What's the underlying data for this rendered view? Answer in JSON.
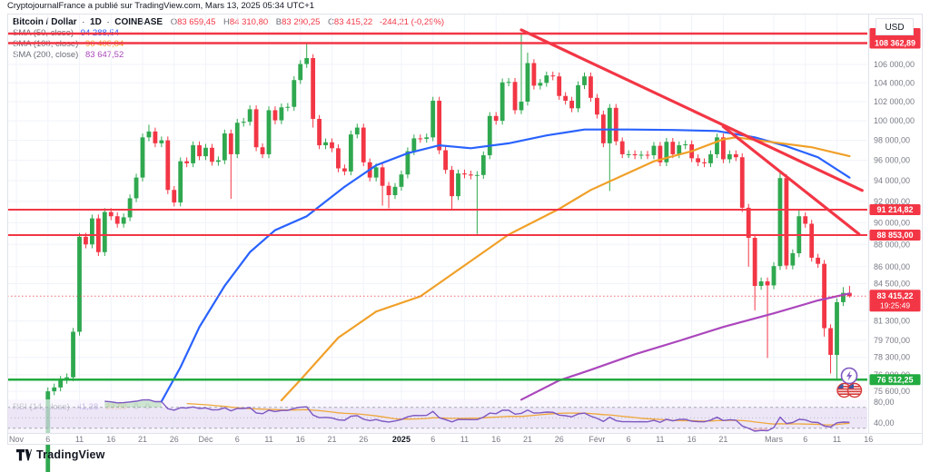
{
  "header": {
    "attribution": "CryptojournalFrance a publié sur TradingView.com, Mars 13, 2025 05:34 UTC+1"
  },
  "legend": {
    "symbol": "Bitcoin / Dollar",
    "sep": "·",
    "interval": "1D",
    "exchange": "COINBASE",
    "ohlc": [
      {
        "label": "O",
        "value": "83 659,45"
      },
      {
        "label": "H",
        "value": "84 310,80"
      },
      {
        "label": "B",
        "value": "83 290,25"
      },
      {
        "label": "C",
        "value": "83 415,22"
      }
    ],
    "change": "-244,21 (-0,29%)"
  },
  "sma_rows": [
    {
      "label": "SMA (50, close)",
      "value": "94 288,54",
      "color": "#2962ff"
    },
    {
      "label": "SMA (100, close)",
      "value": "96 408,84",
      "color": "#f0a029"
    },
    {
      "label": "SMA (200, close)",
      "value": "83 647,52",
      "color": "#ab47bc"
    }
  ],
  "rsi_legend": {
    "label": "RSI (14, close)",
    "value": "41,38",
    "ma_value": "39,60",
    "extra1": "0",
    "extra2": "0"
  },
  "axis": {
    "currency": "USD",
    "price_ticks": [
      {
        "v": 106000,
        "label": "106 000,00"
      },
      {
        "v": 104000,
        "label": "104 000,00"
      },
      {
        "v": 102000,
        "label": "102 000,00"
      },
      {
        "v": 100000,
        "label": "100 000,00"
      },
      {
        "v": 98000,
        "label": "98 000,00"
      },
      {
        "v": 96000,
        "label": "96 000,00"
      },
      {
        "v": 94000,
        "label": "94 000,00"
      },
      {
        "v": 92000,
        "label": "92 000,00"
      },
      {
        "v": 90000,
        "label": "90 000,00"
      },
      {
        "v": 88000,
        "label": "88 000,00"
      },
      {
        "v": 86000,
        "label": "86 000,00"
      },
      {
        "v": 84500,
        "label": "84 500,00"
      },
      {
        "v": 81300,
        "label": "81 300,00"
      },
      {
        "v": 79700,
        "label": "79 700,00"
      },
      {
        "v": 78300,
        "label": "78 300,00"
      },
      {
        "v": 76900,
        "label": "76 900,00"
      },
      {
        "v": 75600,
        "label": "75 600,00"
      }
    ],
    "rsi_ticks": [
      {
        "r": 80,
        "label": "80,00"
      },
      {
        "r": 40,
        "label": "40,00"
      }
    ],
    "time_ticks": [
      {
        "label": "Nov",
        "d": 0,
        "bold": false
      },
      {
        "label": "6",
        "d": 5,
        "bold": false
      },
      {
        "label": "11",
        "d": 10,
        "bold": false
      },
      {
        "label": "16",
        "d": 15,
        "bold": false
      },
      {
        "label": "21",
        "d": 20,
        "bold": false
      },
      {
        "label": "26",
        "d": 25,
        "bold": false
      },
      {
        "label": "Déc",
        "d": 30,
        "bold": false
      },
      {
        "label": "6",
        "d": 35,
        "bold": false
      },
      {
        "label": "11",
        "d": 40,
        "bold": false
      },
      {
        "label": "16",
        "d": 45,
        "bold": false
      },
      {
        "label": "21",
        "d": 50,
        "bold": false
      },
      {
        "label": "26",
        "d": 55,
        "bold": false
      },
      {
        "label": "2025",
        "d": 61,
        "bold": true
      },
      {
        "label": "6",
        "d": 66,
        "bold": false
      },
      {
        "label": "11",
        "d": 71,
        "bold": false
      },
      {
        "label": "16",
        "d": 76,
        "bold": false
      },
      {
        "label": "21",
        "d": 81,
        "bold": false
      },
      {
        "label": "26",
        "d": 86,
        "bold": false
      },
      {
        "label": "Févr",
        "d": 92,
        "bold": false
      },
      {
        "label": "6",
        "d": 97,
        "bold": false
      },
      {
        "label": "11",
        "d": 102,
        "bold": false
      },
      {
        "label": "16",
        "d": 107,
        "bold": false
      },
      {
        "label": "21",
        "d": 112,
        "bold": false
      },
      {
        "label": "Mars",
        "d": 120,
        "bold": false
      },
      {
        "label": "6",
        "d": 125,
        "bold": false
      },
      {
        "label": "11",
        "d": 130,
        "bold": false
      },
      {
        "label": "16",
        "d": 135,
        "bold": false
      }
    ]
  },
  "footer": {
    "logo_text": "TradingView"
  },
  "colors": {
    "up": "#2fa84f",
    "down": "#f23645",
    "sma50": "#2962ff",
    "sma100": "#f0a029",
    "sma200": "#ab47bc",
    "rsi": "#7e57c2",
    "rsi_ma": "#f0a73a",
    "level_red": "#f23645",
    "level_green": "#22ab40",
    "grid": "#f0f3fa",
    "axis_text": "#787b86",
    "border": "#e0e3eb",
    "title_text": "#131722"
  },
  "chart_data": {
    "type": "candlestick",
    "symbol": "Bitcoin / Dollar",
    "exchange": "COINBASE",
    "interval": "1D",
    "scale": "log",
    "start_date": "2024-11-01",
    "end_date": "2025-03-13",
    "first_open": 69600,
    "closes": [
      70200,
      69400,
      68800,
      67900,
      69400,
      75600,
      75900,
      76500,
      76700,
      80400,
      88700,
      88000,
      90400,
      87300,
      91000,
      90600,
      89900,
      90500,
      92300,
      94300,
      98300,
      98900,
      97700,
      98000,
      93100,
      91900,
      95900,
      95700,
      97500,
      96400,
      97250,
      95850,
      96000,
      98700,
      96600,
      99800,
      99900,
      101200,
      97300,
      96600,
      101100,
      100050,
      101400,
      101450,
      104300,
      106050,
      106700,
      100200,
      97500,
      97800,
      97200,
      95200,
      94900,
      98600,
      99300,
      95800,
      94300,
      95300,
      93500,
      92600,
      93400,
      94600,
      96900,
      98200,
      98150,
      98300,
      102100,
      97000,
      95050,
      92500,
      94700,
      94600,
      94500,
      94550,
      96500,
      100500,
      100000,
      104050,
      104100,
      101100,
      102000,
      106150,
      103700,
      104000,
      104800,
      104700,
      102600,
      102100,
      101300,
      103750,
      104700,
      102400,
      100650,
      97700,
      101350,
      97900,
      96600,
      96600,
      96500,
      96550,
      96500,
      97450,
      95800,
      97850,
      96600,
      97500,
      97600,
      96200,
      95800,
      95700,
      96600,
      98300,
      96100,
      96600,
      96300,
      91400,
      88600,
      84300,
      84700,
      84350,
      86050,
      94250,
      86100,
      87200,
      90600,
      89900,
      86800,
      86250,
      80700,
      78500,
      82900,
      83700,
      83415
    ],
    "wick_overrides": {
      "21": [
        99600,
        null
      ],
      "24": [
        null,
        92700
      ],
      "34": [
        null,
        92250
      ],
      "46": [
        108300,
        null
      ],
      "47": [
        null,
        99300
      ],
      "58": [
        null,
        91600
      ],
      "59": [
        null,
        91350
      ],
      "69": [
        null,
        91200
      ],
      "73": [
        null,
        88950
      ],
      "80": [
        109400,
        null
      ],
      "81": [
        107300,
        null
      ],
      "94": [
        null,
        93000
      ],
      "115": [
        null,
        91000
      ],
      "116": [
        null,
        86000
      ],
      "117": [
        null,
        82200
      ],
      "119": [
        null,
        78250
      ],
      "121": [
        95000,
        null
      ],
      "124": [
        91200,
        null
      ],
      "128": [
        null,
        80000
      ],
      "129": [
        null,
        77000
      ],
      "130": [
        null,
        76610
      ],
      "131": [
        84200,
        null
      ],
      "132": [
        84310,
        83290
      ]
    },
    "levels": [
      {
        "value": 109440,
        "label": "",
        "color": "#f23645",
        "width": 2.5
      },
      {
        "value": 108362.89,
        "label": "108 362,89",
        "color": "#f23645",
        "width": 2.5
      },
      {
        "value": 91214.82,
        "label": "91 214,82",
        "color": "#f23645",
        "width": 2
      },
      {
        "value": 88853.0,
        "label": "88 853,00",
        "color": "#f23645",
        "width": 2
      },
      {
        "value": 76512.25,
        "label": "76 512,25",
        "color": "#22ab40",
        "width": 2.5
      }
    ],
    "current_price": {
      "value": 83415.22,
      "label": "83 415,22",
      "countdown": "19:25:49"
    },
    "trendlines": [
      {
        "from": {
          "d": 80,
          "v": 109850
        },
        "to": {
          "d": 134,
          "v": 93050
        }
      },
      {
        "from": {
          "d": 112,
          "v": 99400
        },
        "to": {
          "d": 133.5,
          "v": 88950
        }
      }
    ],
    "sma50": [
      [
        23,
        74800
      ],
      [
        26,
        77500
      ],
      [
        29,
        80800
      ],
      [
        33,
        84300
      ],
      [
        37,
        87300
      ],
      [
        41,
        89300
      ],
      [
        46,
        90600
      ],
      [
        52,
        93400
      ],
      [
        57,
        95500
      ],
      [
        62,
        96700
      ],
      [
        67,
        97500
      ],
      [
        72,
        97200
      ],
      [
        78,
        97700
      ],
      [
        84,
        98500
      ],
      [
        90,
        99100
      ],
      [
        97,
        99100
      ],
      [
        104,
        99050
      ],
      [
        111,
        98950
      ],
      [
        117,
        98300
      ],
      [
        122,
        97400
      ],
      [
        127,
        96300
      ],
      [
        132,
        94288
      ]
    ],
    "sma100": [
      [
        42,
        74900
      ],
      [
        45,
        76500
      ],
      [
        51,
        79900
      ],
      [
        57,
        82100
      ],
      [
        64,
        83400
      ],
      [
        71,
        86100
      ],
      [
        78,
        88900
      ],
      [
        86,
        91300
      ],
      [
        91,
        93100
      ],
      [
        101,
        95900
      ],
      [
        107,
        96900
      ],
      [
        112,
        98100
      ],
      [
        114,
        98300
      ],
      [
        120,
        97800
      ],
      [
        126,
        97300
      ],
      [
        132,
        96408
      ]
    ],
    "sma200": [
      [
        80,
        74950
      ],
      [
        86,
        76450
      ],
      [
        91,
        77300
      ],
      [
        98,
        78550
      ],
      [
        105,
        79650
      ],
      [
        112,
        80800
      ],
      [
        120,
        81950
      ],
      [
        127,
        83050
      ],
      [
        132,
        83647
      ]
    ],
    "rsi": {
      "period": 14,
      "overbought": 70,
      "oversold": 30,
      "midline": 50,
      "last": 41.38,
      "ma_last": 39.6
    }
  }
}
